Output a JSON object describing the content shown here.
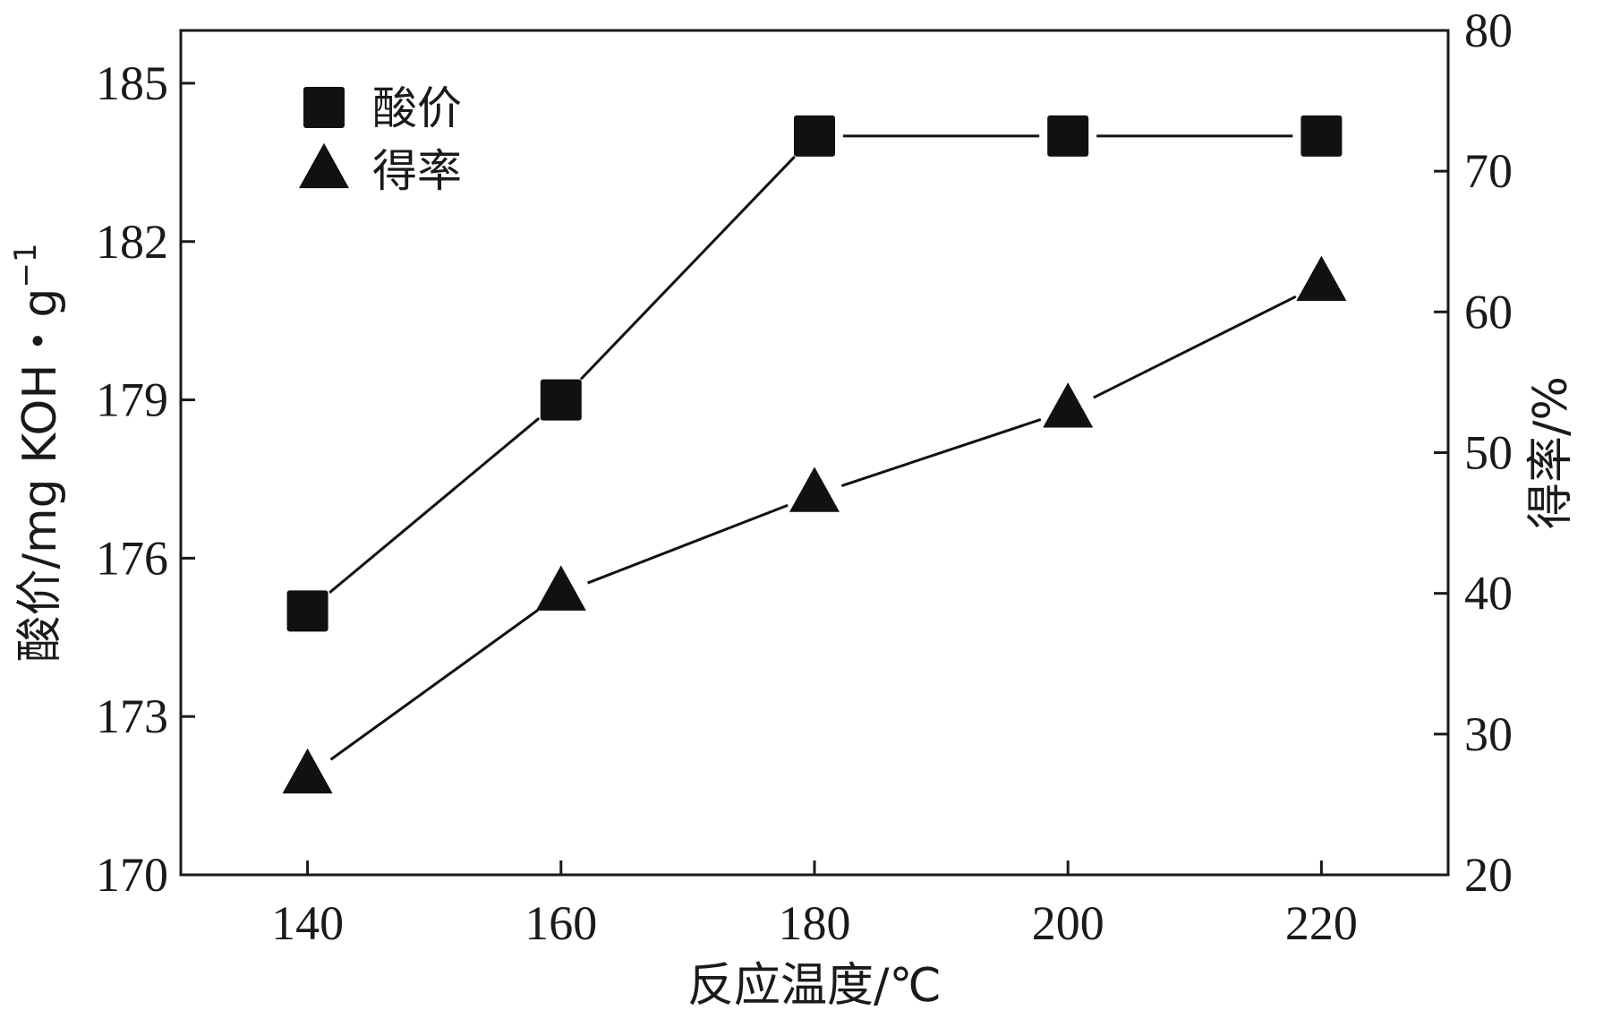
{
  "chart_data": {
    "type": "line",
    "x": [
      140,
      160,
      180,
      200,
      220
    ],
    "xlim": [
      130,
      230
    ],
    "xticks": [
      "140",
      "160",
      "180",
      "200",
      "220"
    ],
    "xlabel": "反应温度/℃",
    "ylabel_left": {
      "text": "酸价/mg KOH・g",
      "superscript": "−1"
    },
    "ylim_left": [
      170,
      186
    ],
    "yticks_left": [
      "170",
      "173",
      "176",
      "179",
      "182",
      "185"
    ],
    "ylabel_right": "得率/%",
    "ylim_right": [
      20,
      80
    ],
    "yticks_right": [
      "20",
      "30",
      "40",
      "50",
      "60",
      "70",
      "80"
    ],
    "grid": false,
    "legend_position": "top-left",
    "series": [
      {
        "name": "酸价",
        "axis": "left",
        "marker": "square",
        "color": "#111111",
        "values": [
          175,
          179,
          184,
          184,
          184
        ]
      },
      {
        "name": "得率",
        "axis": "right",
        "marker": "triangle",
        "color": "#111111",
        "values": [
          27,
          40,
          47,
          53,
          62
        ]
      }
    ]
  }
}
